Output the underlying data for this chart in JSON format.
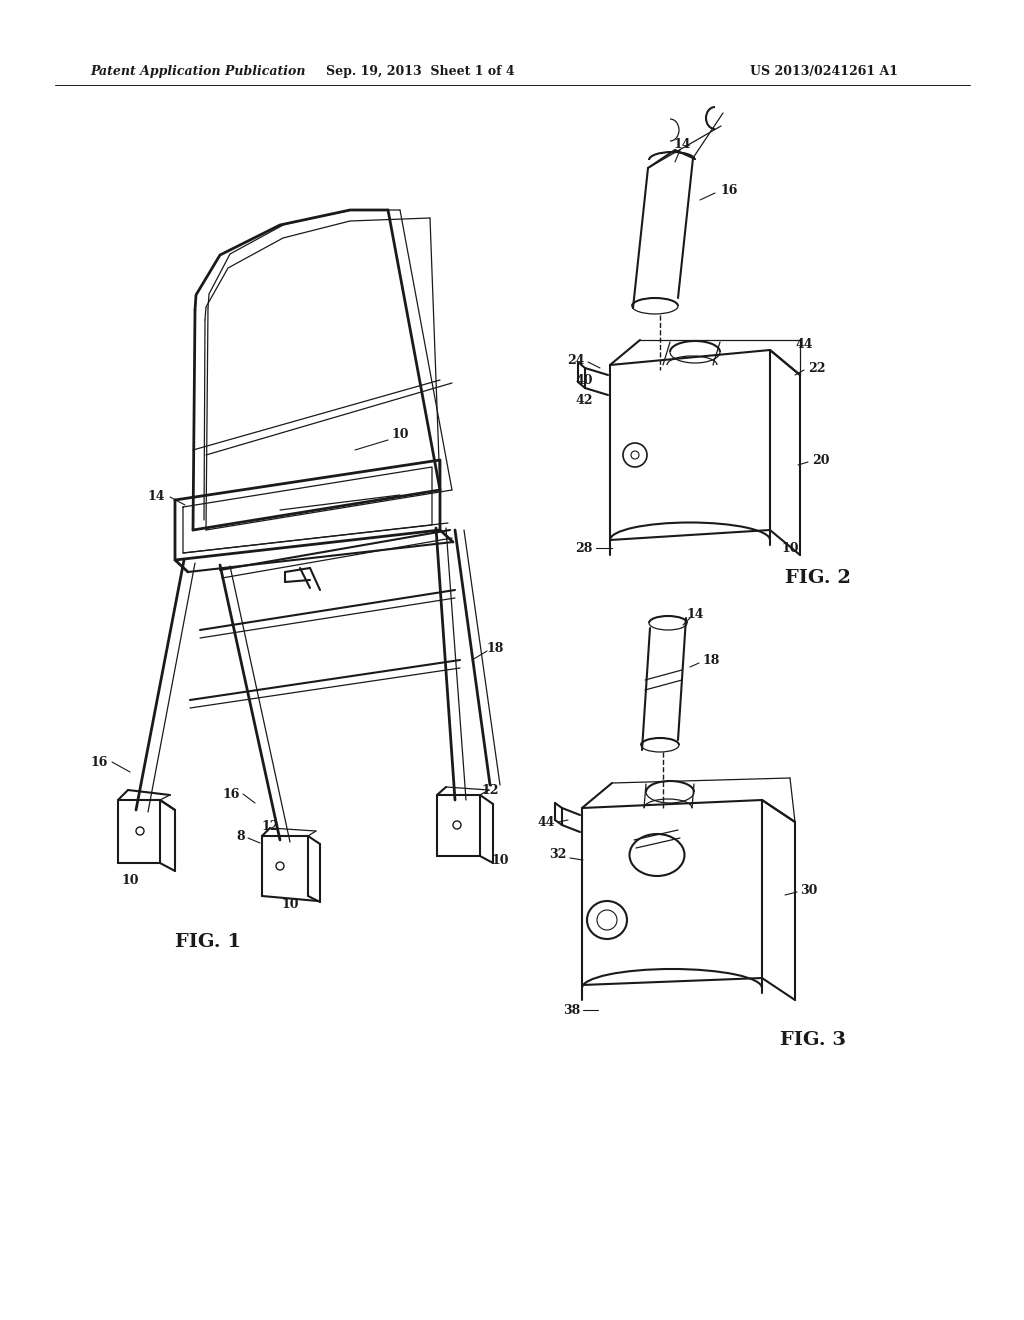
{
  "bg_color": "#ffffff",
  "line_color": "#1a1a1a",
  "header_left": "Patent Application Publication",
  "header_center": "Sep. 19, 2013  Sheet 1 of 4",
  "header_right": "US 2013/0241261 A1",
  "fig1_label": "FIG. 1",
  "fig2_label": "FIG. 2",
  "fig3_label": "FIG. 3",
  "font_size_header": 9,
  "font_size_fig": 14,
  "font_size_ref": 9
}
